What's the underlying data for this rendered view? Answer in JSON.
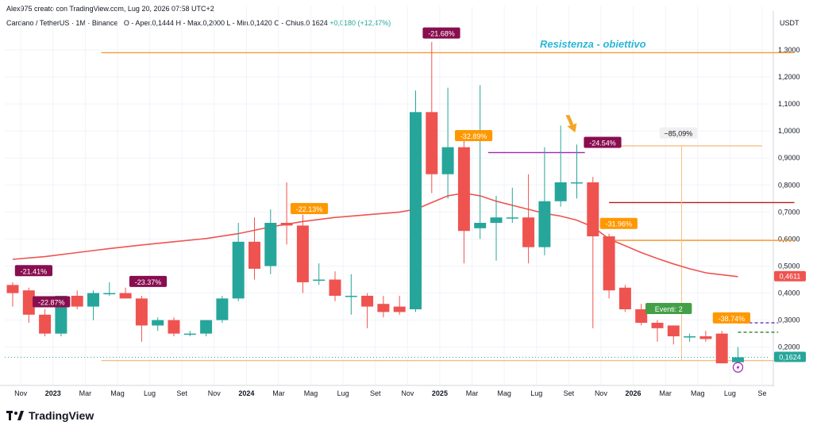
{
  "header": {
    "creator_line": "Alex975 creato con TradingView.com, Lug 20, 2026 07:58 UTC+2",
    "symbol_line": "Cardano / TetherUS · 1M · Binance",
    "ohlc_line": "O - Aper.0,1444  H - Max.0,2000  L - Min.0,1420  C - Chius.0,1624",
    "change": "+0,0180 (+12,47%)"
  },
  "axis_unit": "USDT",
  "logo": "TradingView",
  "colors": {
    "up": "#26a69a",
    "down": "#ef5350",
    "ma": "#ef5350",
    "annotation": "#29b6d6"
  },
  "chart_data": {
    "type": "candlestick",
    "ylim": [
      0.08,
      1.42
    ],
    "y_ticks": [
      "1,3000",
      "1,2000",
      "1,1000",
      "1,0000",
      "0,9000",
      "0,8000",
      "0,7000",
      "0,6000",
      "0,5000",
      "0,4000",
      "0,3000",
      "0,2000"
    ],
    "y_tick_values": [
      1.3,
      1.2,
      1.1,
      1.0,
      0.9,
      0.8,
      0.7,
      0.6,
      0.5,
      0.4,
      0.3,
      0.2
    ],
    "x_ticks": [
      "Nov",
      "2023",
      "Mar",
      "Mag",
      "Lug",
      "Set",
      "Nov",
      "2024",
      "Mar",
      "Mag",
      "Lug",
      "Set",
      "Nov",
      "2025",
      "Mar",
      "Mag",
      "Lug",
      "Set",
      "Nov",
      "2026",
      "Mar",
      "Mag",
      "Lug",
      "Se"
    ],
    "x_tick_index": [
      0.5,
      2.5,
      4.5,
      6.5,
      8.5,
      10.5,
      12.5,
      14.5,
      16.5,
      18.5,
      20.5,
      22.5,
      24.5,
      26.5,
      28.5,
      30.5,
      32.5,
      34.5,
      36.5,
      38.5,
      40.5,
      42.5,
      44.5,
      46.5
    ],
    "candles": [
      {
        "o": 0.43,
        "h": 0.44,
        "l": 0.35,
        "c": 0.4
      },
      {
        "o": 0.41,
        "h": 0.42,
        "l": 0.29,
        "c": 0.32
      },
      {
        "o": 0.32,
        "h": 0.34,
        "l": 0.24,
        "c": 0.25
      },
      {
        "o": 0.25,
        "h": 0.39,
        "l": 0.24,
        "c": 0.39
      },
      {
        "o": 0.39,
        "h": 0.41,
        "l": 0.34,
        "c": 0.35
      },
      {
        "o": 0.35,
        "h": 0.41,
        "l": 0.3,
        "c": 0.4
      },
      {
        "o": 0.4,
        "h": 0.44,
        "l": 0.39,
        "c": 0.4
      },
      {
        "o": 0.4,
        "h": 0.42,
        "l": 0.38,
        "c": 0.38
      },
      {
        "o": 0.38,
        "h": 0.39,
        "l": 0.22,
        "c": 0.28
      },
      {
        "o": 0.28,
        "h": 0.31,
        "l": 0.26,
        "c": 0.3
      },
      {
        "o": 0.3,
        "h": 0.31,
        "l": 0.24,
        "c": 0.25
      },
      {
        "o": 0.25,
        "h": 0.26,
        "l": 0.24,
        "c": 0.25
      },
      {
        "o": 0.25,
        "h": 0.3,
        "l": 0.24,
        "c": 0.3
      },
      {
        "o": 0.3,
        "h": 0.39,
        "l": 0.29,
        "c": 0.38
      },
      {
        "o": 0.38,
        "h": 0.66,
        "l": 0.37,
        "c": 0.59
      },
      {
        "o": 0.59,
        "h": 0.68,
        "l": 0.45,
        "c": 0.49
      },
      {
        "o": 0.5,
        "h": 0.71,
        "l": 0.47,
        "c": 0.66
      },
      {
        "o": 0.66,
        "h": 0.81,
        "l": 0.58,
        "c": 0.65
      },
      {
        "o": 0.65,
        "h": 0.69,
        "l": 0.4,
        "c": 0.44
      },
      {
        "o": 0.45,
        "h": 0.51,
        "l": 0.43,
        "c": 0.45
      },
      {
        "o": 0.45,
        "h": 0.48,
        "l": 0.37,
        "c": 0.39
      },
      {
        "o": 0.39,
        "h": 0.47,
        "l": 0.32,
        "c": 0.39
      },
      {
        "o": 0.39,
        "h": 0.4,
        "l": 0.27,
        "c": 0.35
      },
      {
        "o": 0.36,
        "h": 0.39,
        "l": 0.31,
        "c": 0.33
      },
      {
        "o": 0.35,
        "h": 0.39,
        "l": 0.32,
        "c": 0.33
      },
      {
        "o": 0.34,
        "h": 1.15,
        "l": 0.33,
        "c": 1.07
      },
      {
        "o": 1.07,
        "h": 1.33,
        "l": 0.77,
        "c": 0.84
      },
      {
        "o": 0.84,
        "h": 1.16,
        "l": 0.75,
        "c": 0.94
      },
      {
        "o": 0.94,
        "h": 0.98,
        "l": 0.51,
        "c": 0.63
      },
      {
        "o": 0.64,
        "h": 1.17,
        "l": 0.6,
        "c": 0.66
      },
      {
        "o": 0.66,
        "h": 0.76,
        "l": 0.52,
        "c": 0.68
      },
      {
        "o": 0.68,
        "h": 0.79,
        "l": 0.66,
        "c": 0.68
      },
      {
        "o": 0.68,
        "h": 0.84,
        "l": 0.51,
        "c": 0.57
      },
      {
        "o": 0.57,
        "h": 0.94,
        "l": 0.54,
        "c": 0.74
      },
      {
        "o": 0.74,
        "h": 1.02,
        "l": 0.72,
        "c": 0.81
      },
      {
        "o": 0.81,
        "h": 0.95,
        "l": 0.75,
        "c": 0.81
      },
      {
        "o": 0.81,
        "h": 0.83,
        "l": 0.27,
        "c": 0.61
      },
      {
        "o": 0.61,
        "h": 0.62,
        "l": 0.38,
        "c": 0.41
      },
      {
        "o": 0.42,
        "h": 0.43,
        "l": 0.33,
        "c": 0.34
      },
      {
        "o": 0.34,
        "h": 0.36,
        "l": 0.28,
        "c": 0.29
      },
      {
        "o": 0.29,
        "h": 0.3,
        "l": 0.22,
        "c": 0.27
      },
      {
        "o": 0.28,
        "h": 0.28,
        "l": 0.21,
        "c": 0.24
      },
      {
        "o": 0.24,
        "h": 0.25,
        "l": 0.22,
        "c": 0.24
      },
      {
        "o": 0.24,
        "h": 0.26,
        "l": 0.22,
        "c": 0.23
      },
      {
        "o": 0.25,
        "h": 0.26,
        "l": 0.14,
        "c": 0.14
      },
      {
        "o": 0.144,
        "h": 0.2,
        "l": 0.142,
        "c": 0.1624
      }
    ],
    "ma_series": [
      {
        "i": 0,
        "v": 0.525
      },
      {
        "i": 2,
        "v": 0.535
      },
      {
        "i": 4,
        "v": 0.55
      },
      {
        "i": 6,
        "v": 0.565
      },
      {
        "i": 8,
        "v": 0.578
      },
      {
        "i": 10,
        "v": 0.59
      },
      {
        "i": 12,
        "v": 0.602
      },
      {
        "i": 14,
        "v": 0.62
      },
      {
        "i": 16,
        "v": 0.645
      },
      {
        "i": 18,
        "v": 0.665
      },
      {
        "i": 20,
        "v": 0.68
      },
      {
        "i": 22,
        "v": 0.69
      },
      {
        "i": 24,
        "v": 0.7
      },
      {
        "i": 25,
        "v": 0.71
      },
      {
        "i": 26,
        "v": 0.735
      },
      {
        "i": 27,
        "v": 0.76
      },
      {
        "i": 28,
        "v": 0.77
      },
      {
        "i": 29,
        "v": 0.76
      },
      {
        "i": 30,
        "v": 0.74
      },
      {
        "i": 31,
        "v": 0.725
      },
      {
        "i": 32,
        "v": 0.71
      },
      {
        "i": 33,
        "v": 0.695
      },
      {
        "i": 34,
        "v": 0.685
      },
      {
        "i": 35,
        "v": 0.67
      },
      {
        "i": 36,
        "v": 0.645
      },
      {
        "i": 37,
        "v": 0.6
      },
      {
        "i": 38,
        "v": 0.575
      },
      {
        "i": 39,
        "v": 0.55
      },
      {
        "i": 40,
        "v": 0.528
      },
      {
        "i": 41,
        "v": 0.508
      },
      {
        "i": 42,
        "v": 0.49
      },
      {
        "i": 43,
        "v": 0.475
      },
      {
        "i": 44,
        "v": 0.468
      },
      {
        "i": 45,
        "v": 0.461
      }
    ],
    "hlines": [
      {
        "y": 1.29,
        "x0": 5.5,
        "x1": 48.5,
        "color": "#f39c34"
      },
      {
        "y": 0.92,
        "x0": 29.5,
        "x1": 35.5,
        "color": "#9c27b0"
      },
      {
        "y": 0.735,
        "x0": 37,
        "x1": 48.5,
        "color": "#b71c1c"
      },
      {
        "y": 0.595,
        "x0": 37,
        "x1": 48.5,
        "color": "#f39c34"
      },
      {
        "y": 0.945,
        "x0": 35.5,
        "x1": 46.5,
        "color": "#f5c084"
      },
      {
        "y": 0.15,
        "x0": 5.5,
        "x1": 48.5,
        "color": "#f5c084"
      },
      {
        "y": 0.29,
        "x0": 45,
        "x1": 47.5,
        "color": "#5e35b1",
        "dash": true
      },
      {
        "y": 0.255,
        "x0": 45,
        "x1": 47.5,
        "color": "#2e7d32",
        "dash": true
      }
    ],
    "vline": {
      "x": 41.5,
      "y0": 0.945,
      "y1": 0.15,
      "color": "#f5c084"
    },
    "labels": [
      {
        "text": "-21.41%",
        "i": 1.3,
        "y": 0.48,
        "kind": "purple"
      },
      {
        "text": "-22.87%",
        "i": 2.4,
        "y": 0.365,
        "kind": "purple"
      },
      {
        "text": "-23.37%",
        "i": 8.4,
        "y": 0.44,
        "kind": "purple"
      },
      {
        "text": "-22.13%",
        "i": 18.4,
        "y": 0.71,
        "kind": "orange"
      },
      {
        "text": "-21.68%",
        "i": 26.6,
        "y": 1.36,
        "kind": "purple"
      },
      {
        "text": "-32.89%",
        "i": 28.6,
        "y": 0.98,
        "kind": "orange"
      },
      {
        "text": "-24.54%",
        "i": 36.6,
        "y": 0.955,
        "kind": "purple"
      },
      {
        "text": "-31.96%",
        "i": 37.6,
        "y": 0.655,
        "kind": "orange"
      },
      {
        "text": "-38.74%",
        "i": 44.6,
        "y": 0.305,
        "kind": "orange"
      },
      {
        "text": "Eventi: 2",
        "i": 40.7,
        "y": 0.34,
        "kind": "green"
      },
      {
        "text": "−85,09%",
        "i": 41.3,
        "y": 0.99,
        "kind": "grey"
      }
    ],
    "annotation": {
      "text": "Resistenza - obiettivo",
      "i": 36.0,
      "y": 1.32
    },
    "price_tags": [
      {
        "text": "0,4611",
        "y": 0.4611,
        "color": "#ef5350"
      },
      {
        "text": "0,1624",
        "y": 0.1624,
        "color": "#26a69a"
      }
    ]
  }
}
